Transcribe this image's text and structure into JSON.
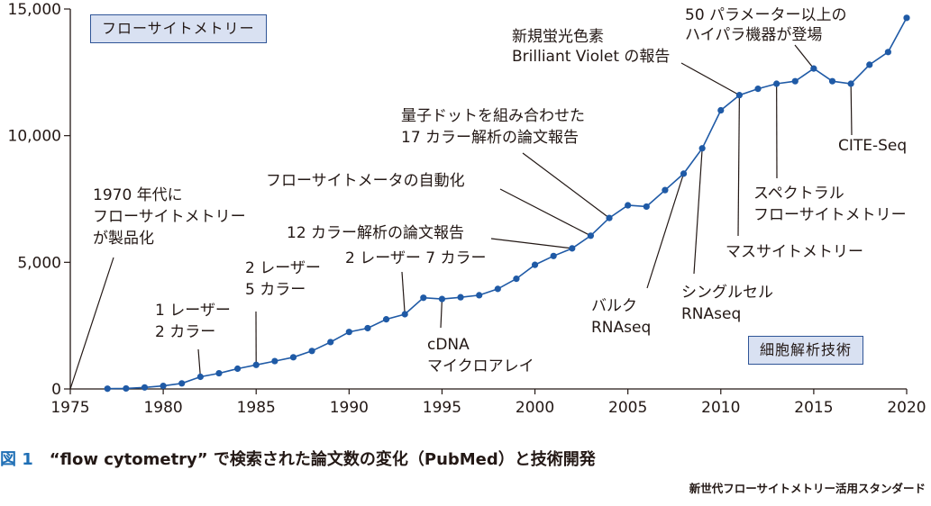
{
  "chart_data": {
    "type": "line",
    "title": "",
    "xlabel": "",
    "ylabel": "",
    "xlim": [
      1975,
      2020
    ],
    "ylim": [
      0,
      15000
    ],
    "x_ticks": [
      1975,
      1980,
      1985,
      1990,
      1995,
      2000,
      2005,
      2010,
      2015,
      2020
    ],
    "x_tick_labels": [
      "1975",
      "1980",
      "1985",
      "1990",
      "1995",
      "2000",
      "2005",
      "2010",
      "2015",
      "2020"
    ],
    "y_ticks": [
      0,
      5000,
      10000,
      15000
    ],
    "y_tick_labels": [
      "0",
      "5,000",
      "10,000",
      "15,000"
    ],
    "series": [
      {
        "name": "flow cytometry 論文数",
        "color": "#1f5aa6",
        "x": [
          1977,
          1978,
          1979,
          1980,
          1981,
          1982,
          1983,
          1984,
          1985,
          1986,
          1987,
          1988,
          1989,
          1990,
          1991,
          1992,
          1993,
          1994,
          1995,
          1996,
          1997,
          1998,
          1999,
          2000,
          2001,
          2002,
          2003,
          2004,
          2005,
          2006,
          2007,
          2008,
          2009,
          2010,
          2011,
          2012,
          2013,
          2014,
          2015,
          2016,
          2017,
          2018,
          2019,
          2020
        ],
        "values": [
          10,
          20,
          60,
          120,
          220,
          480,
          620,
          800,
          950,
          1100,
          1250,
          1500,
          1850,
          2250,
          2400,
          2750,
          2950,
          3600,
          3550,
          3620,
          3700,
          3950,
          4350,
          4900,
          5250,
          5550,
          6050,
          6750,
          7250,
          7200,
          7850,
          8500,
          9500,
          11000,
          11600,
          11850,
          12050,
          12150,
          12650,
          12150,
          12050,
          12800,
          13300,
          14650
        ]
      }
    ],
    "annotations": [
      {
        "lines": [
          "1970 年代に",
          "フローサイトメトリー",
          "が製品化"
        ],
        "x": 1975,
        "y": 0
      },
      {
        "lines": [
          "1 レーザー",
          "2 カラー"
        ],
        "x": 1982,
        "y": 480
      },
      {
        "lines": [
          "2 レーザー",
          "5 カラー"
        ],
        "x": 1985,
        "y": 950
      },
      {
        "lines": [
          "2 レーザー 7 カラー"
        ],
        "x": 1993,
        "y": 2950
      },
      {
        "lines": [
          "cDNA",
          "マイクロアレイ"
        ],
        "x": 1995,
        "y": 3550
      },
      {
        "lines": [
          "12 カラー解析の論文報告"
        ],
        "x": 2002,
        "y": 5550
      },
      {
        "lines": [
          "フローサイトメータの自動化"
        ],
        "x": 2003,
        "y": 6050
      },
      {
        "lines": [
          "量子ドットを組み合わせた",
          "17 カラー解析の論文報告"
        ],
        "x": 2004,
        "y": 6750
      },
      {
        "lines": [
          "新規蛍光色素",
          "Brilliant Violet の報告"
        ],
        "x": 2011,
        "y": 11600
      },
      {
        "lines": [
          "50 パラメーター以上の",
          "ハイパラ機器が登場"
        ],
        "x": 2015,
        "y": 12650
      },
      {
        "lines": [
          "バルク",
          "RNAseq"
        ],
        "x": 2008,
        "y": 8500
      },
      {
        "lines": [
          "シングルセル",
          "RNAseq"
        ],
        "x": 2009,
        "y": 9500
      },
      {
        "lines": [
          "マスサイトメトリー"
        ],
        "x": 2011,
        "y": 11600
      },
      {
        "lines": [
          "スペクトラル",
          "フローサイトメトリー"
        ],
        "x": 2013,
        "y": 12050
      },
      {
        "lines": [
          "CITE-Seq"
        ],
        "x": 2017,
        "y": 12050
      }
    ],
    "legend_boxes": [
      "フローサイトメトリー",
      "細胞解析技術"
    ]
  },
  "figure": {
    "caption_number": "図 1",
    "caption_text": "“flow cytometry” で検索された論文数の変化（PubMed）と技術開発",
    "source": "新世代フローサイトメトリー活用スタンダード"
  }
}
